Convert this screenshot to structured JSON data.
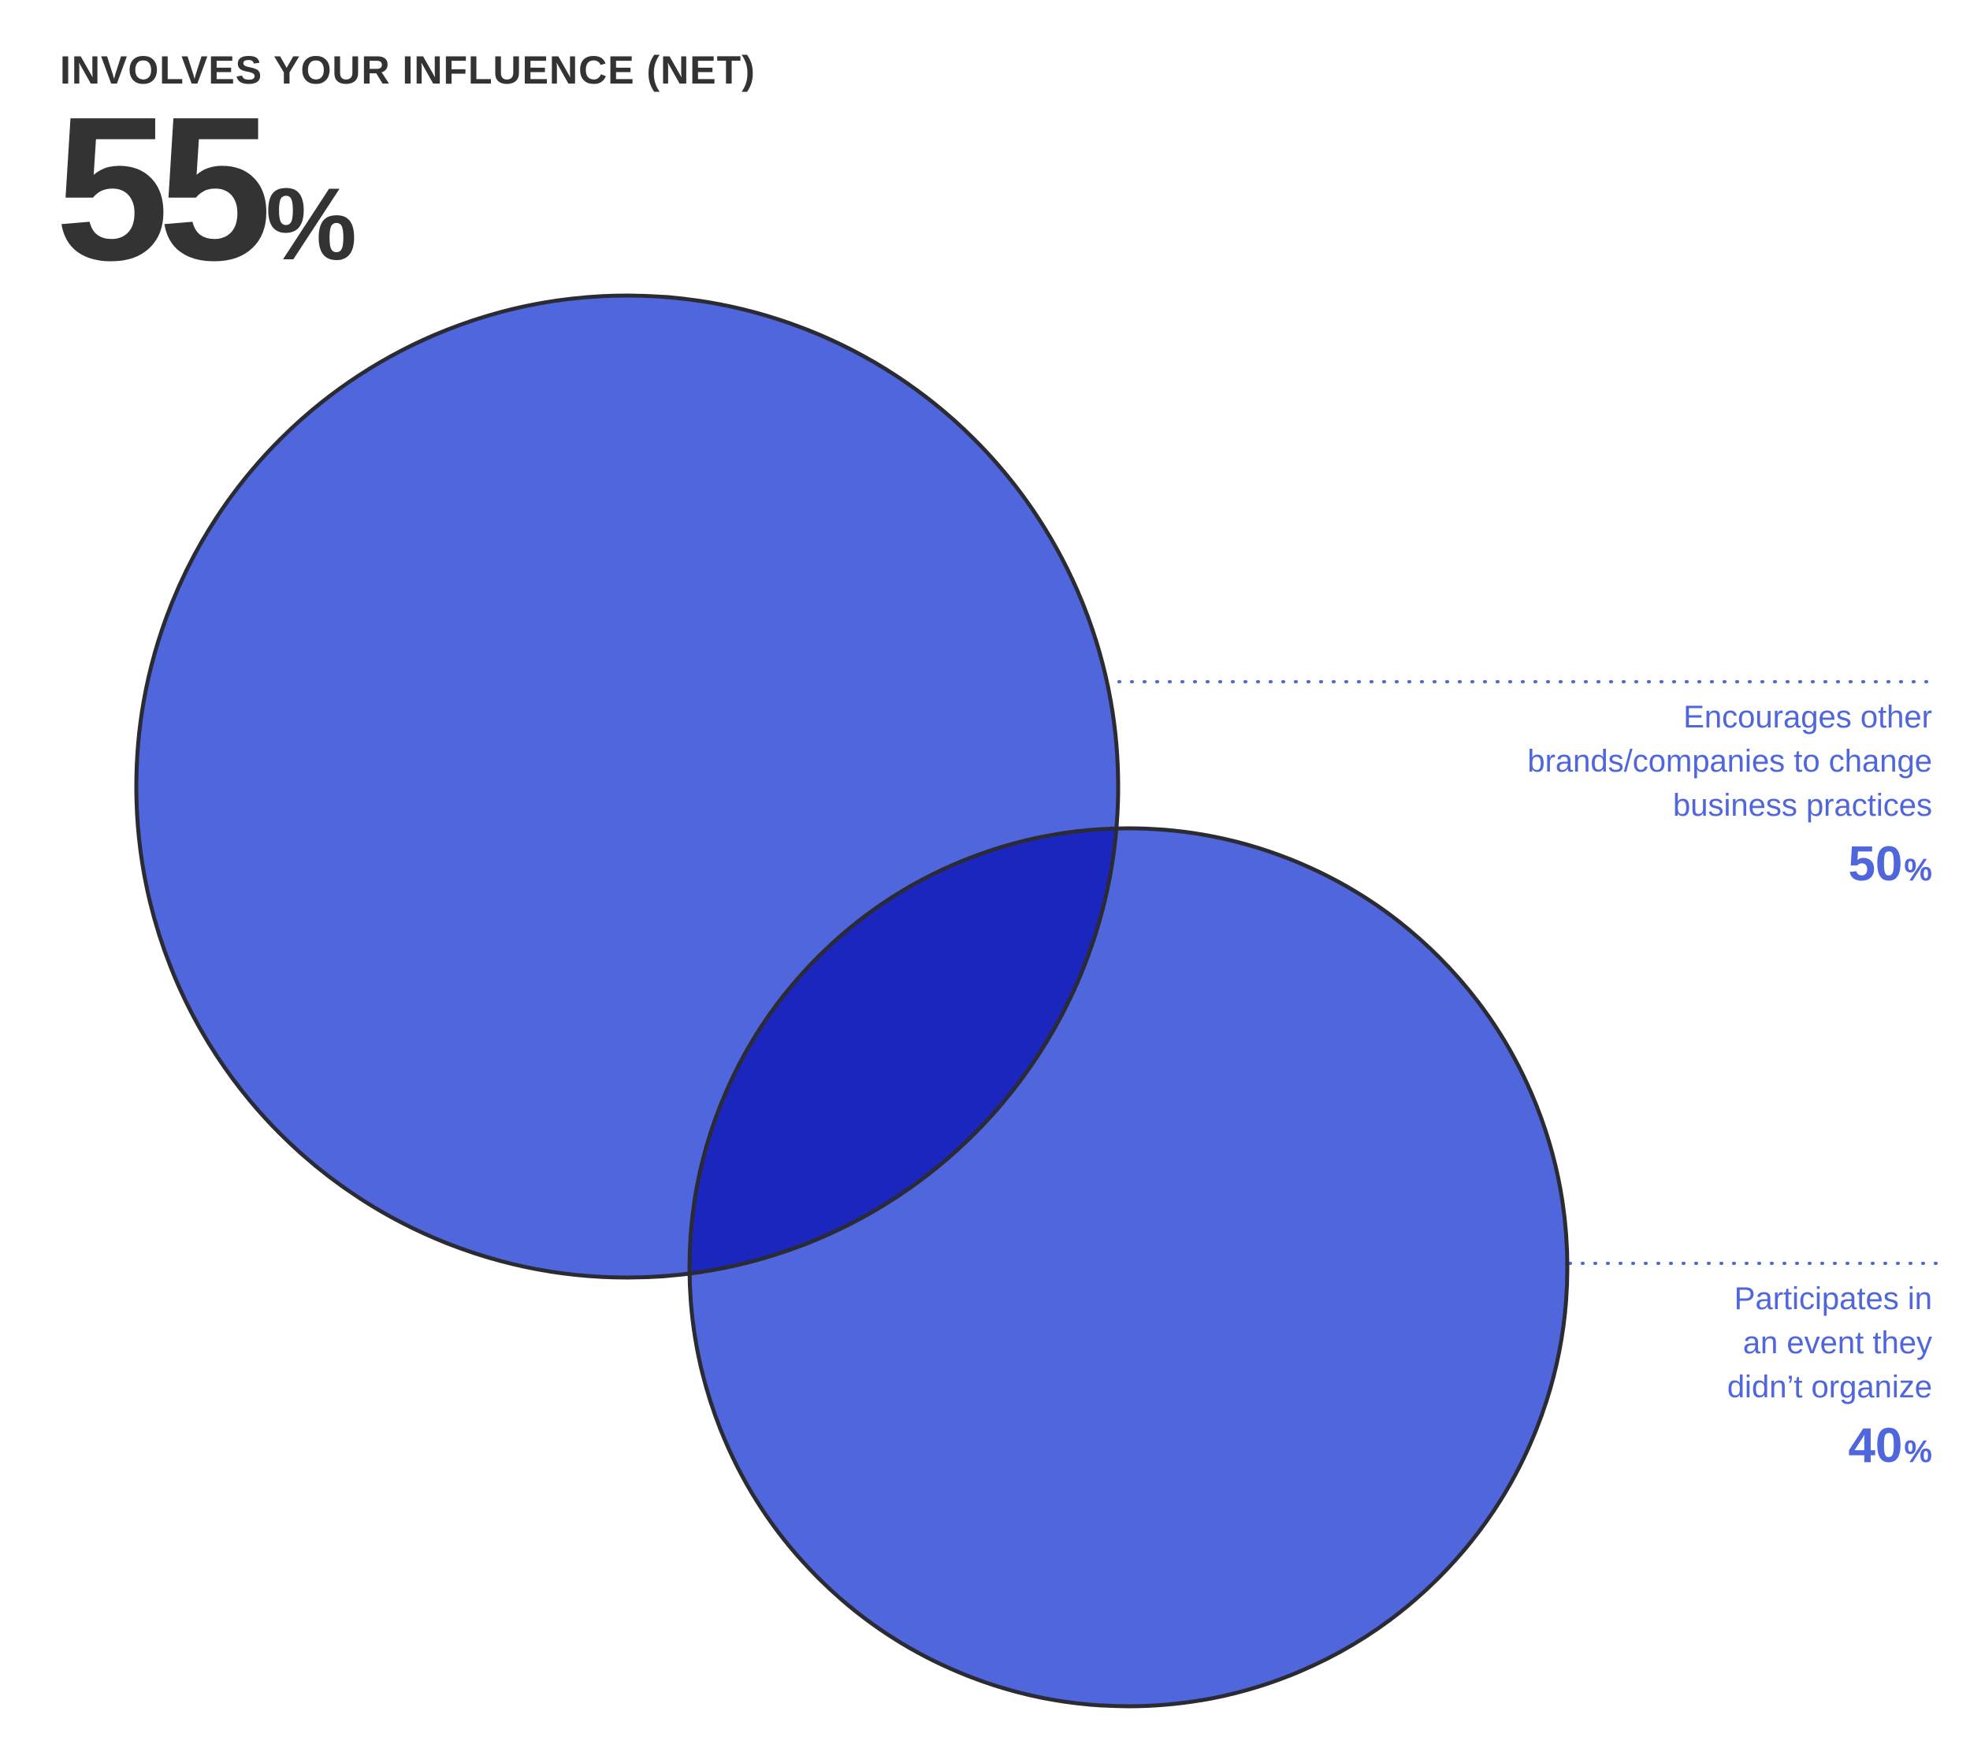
{
  "heading": "INVOLVES YOUR INFLUENCE (NET)",
  "net": {
    "value": "55",
    "unit": "%"
  },
  "colors": {
    "circle_fill": "#5066dd",
    "overlap_fill": "#1b26be",
    "outline": "#2b2b33",
    "label": "#5066dd",
    "heading": "#333333"
  },
  "sets": [
    {
      "id": "a",
      "label": "Encourages other brands/companies to change business practices",
      "value": "50",
      "unit": "%"
    },
    {
      "id": "b",
      "label": "Participates in an event they didn’t organize",
      "value": "40",
      "unit": "%"
    }
  ]
}
